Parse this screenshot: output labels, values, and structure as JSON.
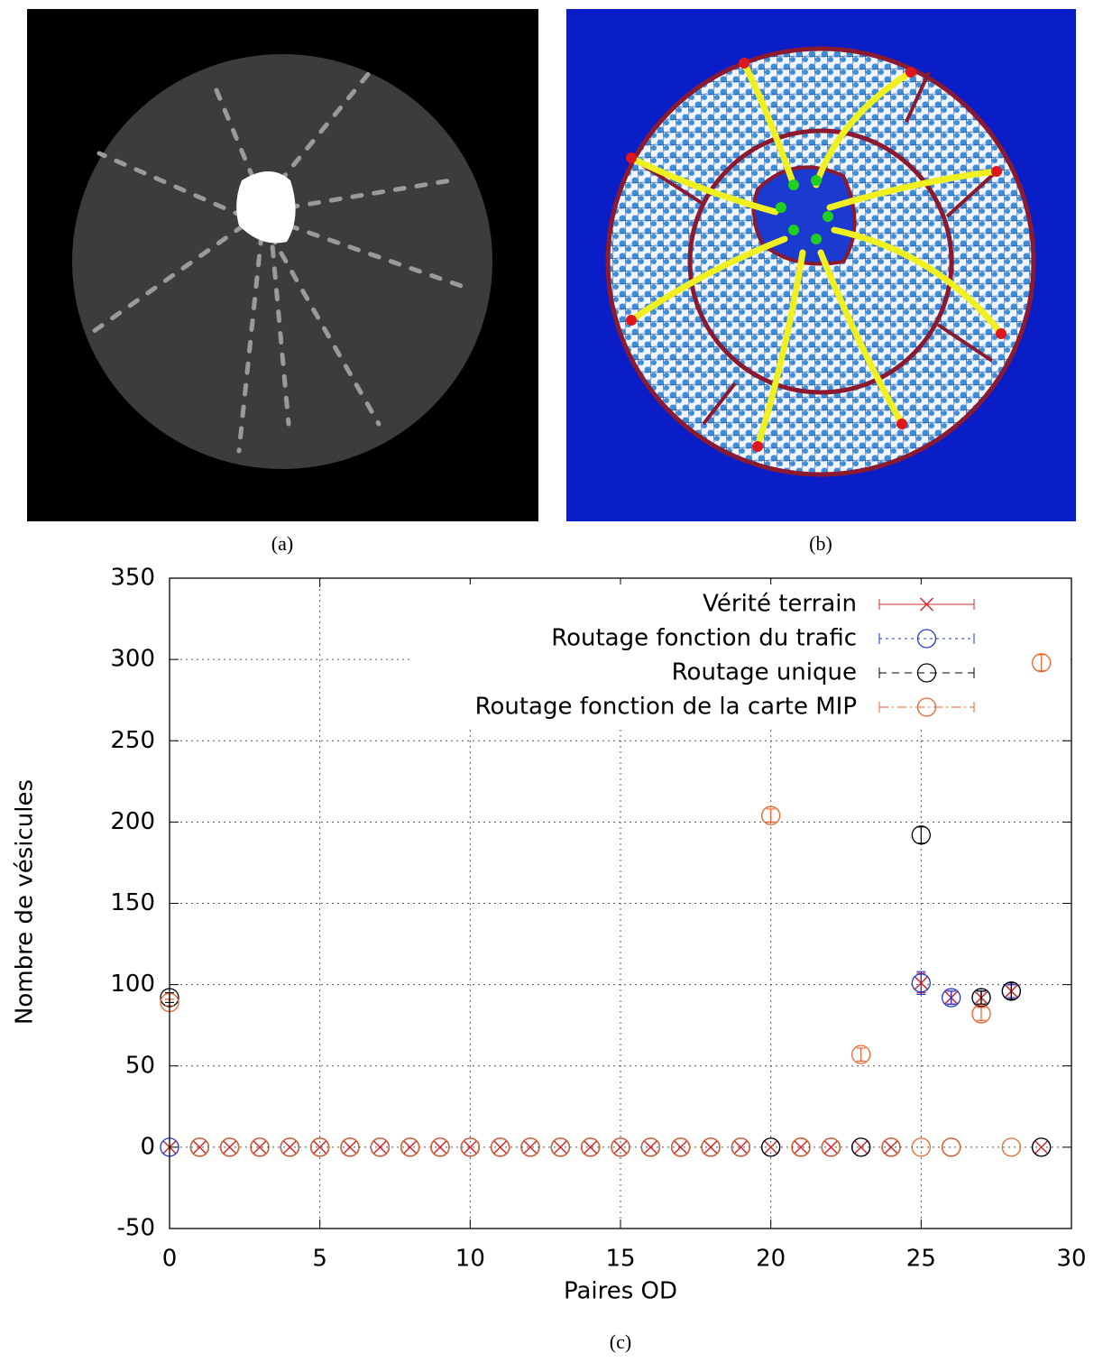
{
  "captions": [
    "(a)",
    "(b)",
    "(c)"
  ],
  "chart_data": {
    "type": "scatter",
    "x_label": "Paires OD",
    "y_label": "Nombre de vésicules",
    "x": [
      0,
      1,
      2,
      3,
      4,
      5,
      6,
      7,
      8,
      9,
      10,
      11,
      12,
      13,
      14,
      15,
      16,
      17,
      18,
      19,
      20,
      21,
      22,
      23,
      24,
      25,
      26,
      27,
      28,
      29
    ],
    "xlim": [
      0,
      30
    ],
    "xticks": [
      0,
      5,
      10,
      15,
      20,
      25,
      30
    ],
    "ylim": [
      -50,
      350
    ],
    "yticks": [
      -50,
      0,
      50,
      100,
      150,
      200,
      250,
      300,
      350
    ],
    "grid": true,
    "legend": "top-right",
    "series": [
      {
        "name": "Vérité terrain",
        "color": "#d42a2a",
        "marker": "x",
        "dash": "solid",
        "values": [
          0,
          0,
          0,
          0,
          0,
          0,
          0,
          0,
          0,
          0,
          0,
          0,
          0,
          0,
          0,
          0,
          0,
          0,
          0,
          0,
          0,
          0,
          0,
          0,
          0,
          101,
          92,
          92,
          96,
          0
        ],
        "errors": [
          0,
          0,
          0,
          0,
          0,
          0,
          0,
          0,
          0,
          0,
          0,
          0,
          0,
          0,
          0,
          0,
          0,
          0,
          0,
          0,
          0,
          0,
          0,
          0,
          0,
          6,
          4,
          4,
          4,
          0
        ]
      },
      {
        "name": "Routage fonction du trafic",
        "color": "#2233dd",
        "marker": "circle",
        "dash": "dotted",
        "values": [
          0,
          0,
          0,
          0,
          0,
          0,
          0,
          0,
          0,
          0,
          0,
          0,
          0,
          0,
          0,
          0,
          0,
          0,
          0,
          0,
          0,
          0,
          0,
          0,
          0,
          101,
          92,
          92,
          96,
          0
        ],
        "errors": [
          0,
          0,
          0,
          0,
          0,
          0,
          0,
          0,
          0,
          0,
          0,
          0,
          0,
          0,
          0,
          0,
          0,
          0,
          0,
          0,
          0,
          0,
          0,
          0,
          0,
          7,
          4,
          4,
          4,
          0
        ]
      },
      {
        "name": "Routage unique",
        "color": "#000000",
        "marker": "circle",
        "dash": "dashed",
        "values": [
          92,
          0,
          0,
          0,
          0,
          0,
          0,
          0,
          0,
          0,
          0,
          0,
          0,
          0,
          0,
          0,
          0,
          0,
          0,
          0,
          0,
          0,
          0,
          0,
          0,
          192,
          0,
          92,
          96,
          0
        ],
        "errors": [
          3,
          0,
          0,
          0,
          0,
          0,
          0,
          0,
          0,
          0,
          0,
          0,
          0,
          0,
          0,
          0,
          0,
          0,
          0,
          0,
          0,
          0,
          0,
          0,
          0,
          5,
          0,
          4,
          5,
          0
        ]
      },
      {
        "name": "Routage fonction de la carte MIP",
        "color": "#f06028",
        "marker": "circle",
        "dash": "dashdot",
        "values": [
          89,
          0,
          0,
          0,
          0,
          0,
          0,
          0,
          0,
          0,
          0,
          0,
          0,
          0,
          0,
          0,
          0,
          0,
          0,
          0,
          204,
          0,
          0,
          57,
          0,
          0,
          0,
          82,
          0,
          298
        ],
        "errors": [
          2,
          0,
          0,
          0,
          0,
          0,
          0,
          0,
          0,
          0,
          0,
          0,
          0,
          0,
          0,
          0,
          0,
          0,
          0,
          0,
          4,
          0,
          0,
          4,
          0,
          0,
          0,
          4,
          0,
          5
        ]
      }
    ]
  }
}
